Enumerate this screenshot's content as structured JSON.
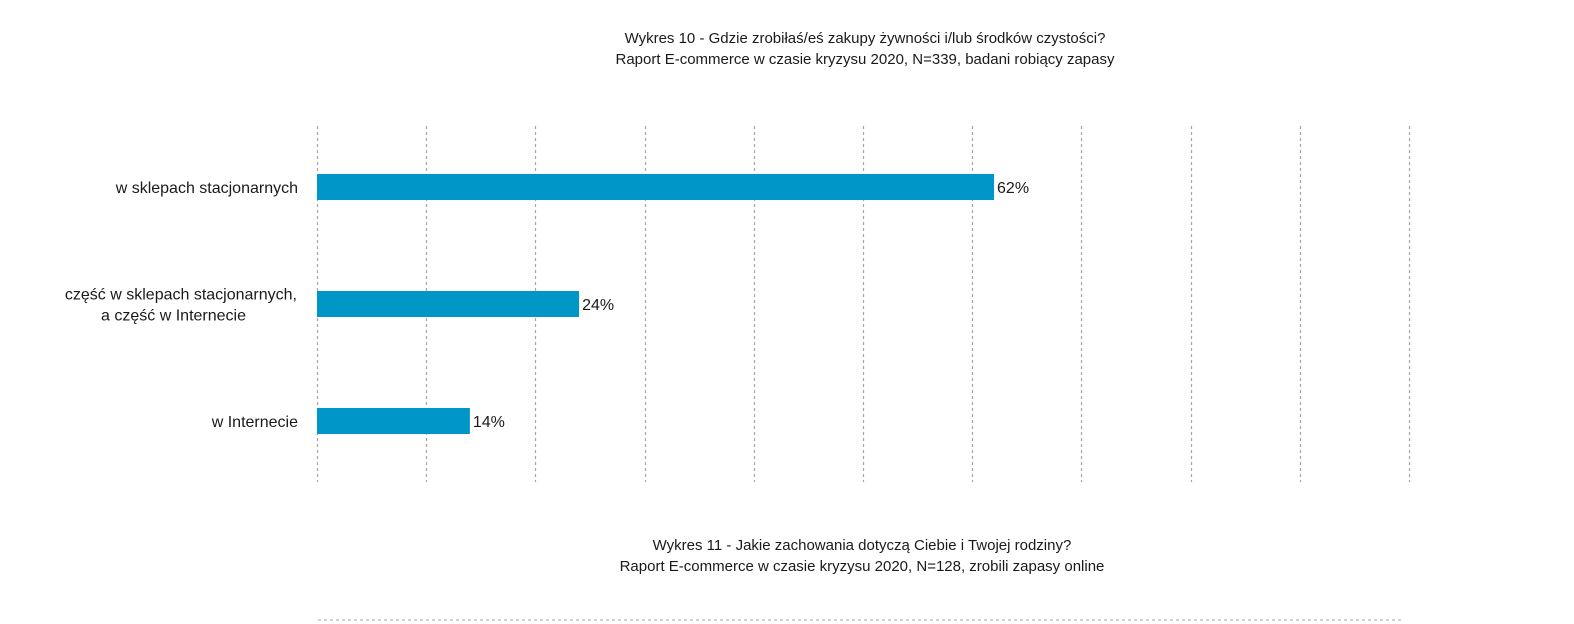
{
  "chart10": {
    "title": "Wykres 10 - Gdzie zrobiłaś/eś zakupy żywności i/lub środków czystości?",
    "subtitle": "Raport E-commerce w czasie kryzysu 2020, N=339, badani robiący zapasy"
  },
  "chart11": {
    "title": "Wykres 11 - Jakie zachowania dotyczą Ciebie i Twojej rodziny?",
    "subtitle": "Raport E-commerce w czasie kryzysu 2020, N=128, zrobili zapasy online"
  },
  "chart_data": [
    {
      "type": "bar",
      "orientation": "horizontal",
      "title": "Wykres 10 - Gdzie zrobiłaś/eś zakupy żywności i/lub środków czystości?",
      "subtitle": "Raport E-commerce w czasie kryzysu 2020, N=339, badani robiący zapasy",
      "categories": [
        [
          "w sklepach stacjonarnych"
        ],
        [
          "część w sklepach stacjonarnych,",
          "a część w Internecie"
        ],
        [
          "w Internecie"
        ]
      ],
      "values": [
        62,
        24,
        14
      ],
      "value_labels": [
        "62%",
        "24%",
        "14%"
      ],
      "xlim": [
        0,
        100
      ],
      "grid": true,
      "bar_color": "#0096c7",
      "grid_color": "#a6a6a6"
    }
  ]
}
